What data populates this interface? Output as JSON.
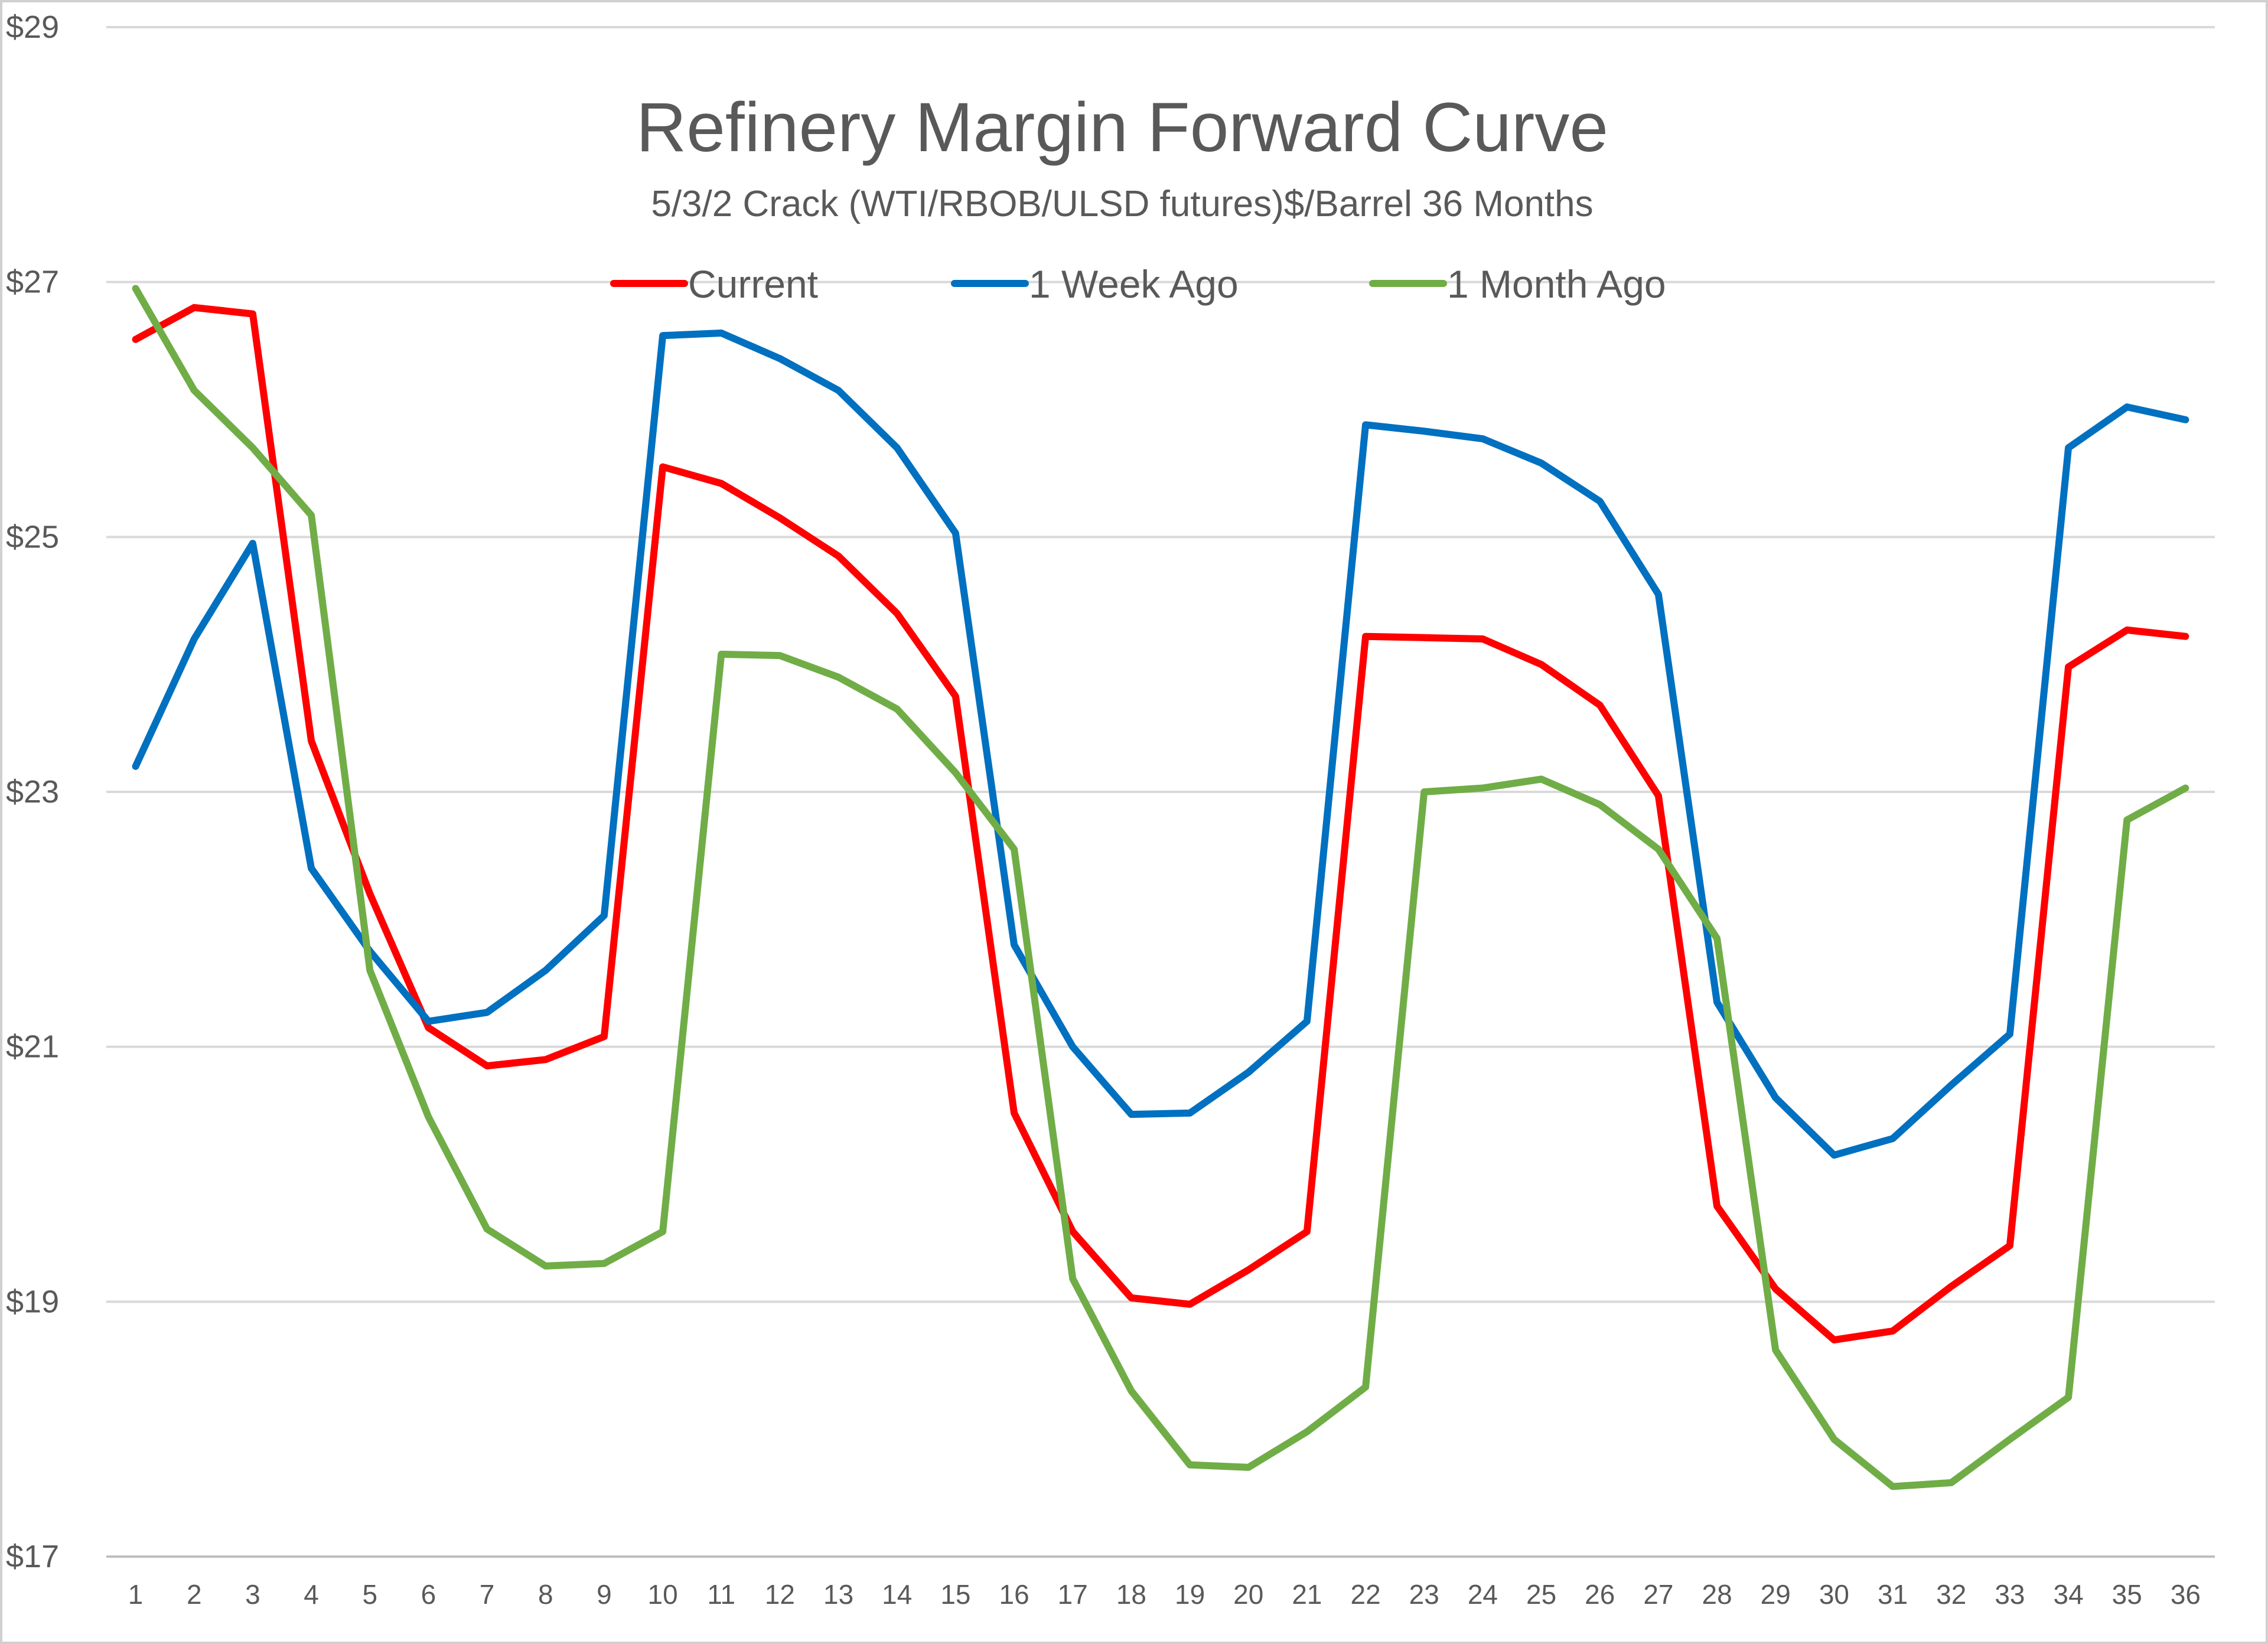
{
  "chart_data": {
    "type": "line",
    "title": "Refinery Margin Forward Curve",
    "subtitle": "5/3/2 Crack (WTI/RBOB/ULSD futures)$/Barrel 36 Months",
    "xlabel": "",
    "ylabel": "",
    "ylim": [
      17,
      29
    ],
    "y_ticks": [
      17,
      19,
      21,
      23,
      25,
      27,
      29
    ],
    "y_tick_labels": [
      "$17",
      "$19",
      "$21",
      "$23",
      "$25",
      "$27",
      "$29"
    ],
    "x": [
      1,
      2,
      3,
      4,
      5,
      6,
      7,
      8,
      9,
      10,
      11,
      12,
      13,
      14,
      15,
      16,
      17,
      18,
      19,
      20,
      21,
      22,
      23,
      24,
      25,
      26,
      27,
      28,
      29,
      30,
      31,
      32,
      33,
      34,
      35,
      36
    ],
    "grid": true,
    "legend_position": "top",
    "series": [
      {
        "name": "Current",
        "color": "#ff0000",
        "values": [
          26.55,
          26.8,
          26.75,
          23.4,
          22.2,
          21.15,
          20.85,
          20.9,
          21.08,
          25.55,
          25.42,
          25.15,
          24.85,
          24.4,
          23.75,
          20.48,
          19.55,
          19.03,
          18.98,
          19.25,
          19.55,
          24.22,
          24.21,
          24.2,
          24.0,
          23.68,
          22.97,
          19.75,
          19.1,
          18.7,
          18.77,
          19.12,
          19.44,
          23.98,
          24.27,
          24.22
        ]
      },
      {
        "name": "1 Week Ago",
        "color": "#0070c0",
        "values": [
          23.2,
          24.2,
          24.95,
          22.4,
          21.75,
          21.2,
          21.27,
          21.6,
          22.03,
          26.58,
          26.6,
          26.4,
          26.15,
          25.7,
          25.03,
          21.8,
          21.0,
          20.47,
          20.48,
          20.8,
          21.2,
          25.88,
          25.83,
          25.77,
          25.58,
          25.28,
          24.55,
          21.35,
          20.6,
          20.15,
          20.28,
          20.7,
          21.1,
          25.7,
          26.02,
          25.92
        ]
      },
      {
        "name": "1 Month Ago",
        "color": "#70ad47",
        "values": [
          26.95,
          26.15,
          25.7,
          25.17,
          21.6,
          20.45,
          19.57,
          19.28,
          19.3,
          19.55,
          24.08,
          24.07,
          23.9,
          23.65,
          23.15,
          22.55,
          19.18,
          18.3,
          17.72,
          17.7,
          17.98,
          18.33,
          23.0,
          23.03,
          23.1,
          22.9,
          22.55,
          21.85,
          18.62,
          17.92,
          17.55,
          17.58,
          17.92,
          18.25,
          22.78,
          23.03
        ]
      }
    ]
  }
}
